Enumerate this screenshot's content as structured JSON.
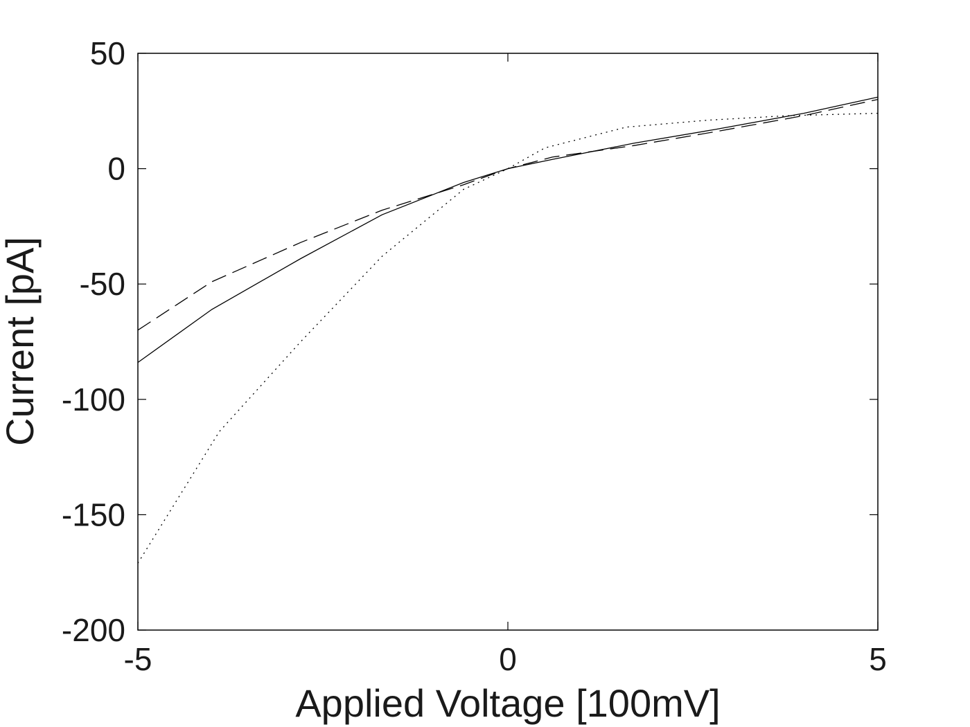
{
  "chart_data": {
    "type": "line",
    "title": "",
    "xlabel": "Applied Voltage [100mV]",
    "ylabel": "Current [pA]",
    "xlim": [
      -5,
      5
    ],
    "ylim": [
      -200,
      50
    ],
    "xticks": [
      -5,
      0,
      5
    ],
    "yticks": [
      50,
      0,
      -50,
      -100,
      -150,
      -200
    ],
    "xtick_labels": [
      "-5",
      "0",
      "5"
    ],
    "ytick_labels": [
      "50",
      "0",
      "-50",
      "-100",
      "-150",
      "-200"
    ],
    "grid": false,
    "legend": "none",
    "series": [
      {
        "style": "solid",
        "x": [
          -5,
          -4,
          -2.8,
          -1.7,
          -0.6,
          0,
          0.6,
          1.7,
          2.8,
          4,
          5
        ],
        "y": [
          -84,
          -61,
          -39,
          -20,
          -6,
          0,
          4,
          11,
          17,
          24,
          31
        ]
      },
      {
        "style": "dashed",
        "x": [
          -5,
          -4,
          -2.8,
          -1.7,
          -0.6,
          0,
          0.6,
          1.7,
          2.8,
          4,
          5
        ],
        "y": [
          -70,
          -49,
          -32,
          -18,
          -7,
          0,
          5,
          10,
          16,
          23,
          30
        ]
      },
      {
        "style": "dotted",
        "x": [
          -5,
          -3.9,
          -2.8,
          -1.7,
          -0.6,
          0,
          0.5,
          1.6,
          2.7,
          3.8,
          5
        ],
        "y": [
          -171,
          -114,
          -75,
          -38,
          -9,
          0,
          9,
          18,
          21,
          23,
          24
        ]
      }
    ]
  }
}
